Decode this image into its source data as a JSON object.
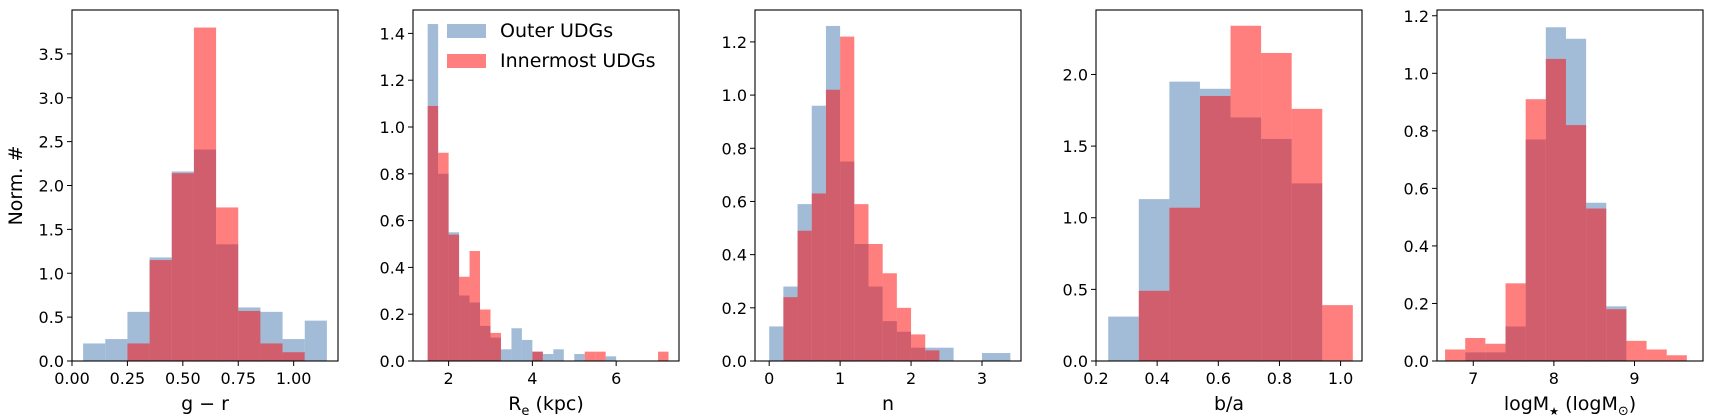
{
  "colors": {
    "outer": "#7aa0c8",
    "innermost": "#ff0000",
    "outer_alpha": 0.7,
    "innermost_alpha": 0.5
  },
  "legend": {
    "outer_label": "Outer UDGs",
    "innermost_label": "Innermost UDGs",
    "placement": "upper-right of panel 2"
  },
  "ylabel": "Norm. #",
  "chart_data": [
    {
      "type": "bar",
      "xlabel": "g − r",
      "xlim": [
        0.0,
        1.2
      ],
      "ylim": [
        0,
        4.0
      ],
      "xticks": [
        0.0,
        0.25,
        0.5,
        0.75,
        1.0
      ],
      "xtick_labels": [
        "0.00",
        "0.25",
        "0.50",
        "0.75",
        "1.00"
      ],
      "yticks": [
        0.0,
        0.5,
        1.0,
        1.5,
        2.0,
        2.5,
        3.0,
        3.5
      ],
      "ytick_labels": [
        "0.0",
        "0.5",
        "1.0",
        "1.5",
        "2.0",
        "2.5",
        "3.0",
        "3.5"
      ],
      "series": [
        {
          "name": "Outer UDGs",
          "bins": [
            [
              0.05,
              0.15,
              0.2
            ],
            [
              0.15,
              0.25,
              0.25
            ],
            [
              0.25,
              0.35,
              0.56
            ],
            [
              0.35,
              0.45,
              1.18
            ],
            [
              0.45,
              0.55,
              2.16
            ],
            [
              0.55,
              0.65,
              2.41
            ],
            [
              0.65,
              0.75,
              1.33
            ],
            [
              0.75,
              0.85,
              0.61
            ],
            [
              0.85,
              0.95,
              0.56
            ],
            [
              0.95,
              1.05,
              0.25
            ],
            [
              1.05,
              1.15,
              0.46
            ]
          ]
        },
        {
          "name": "Innermost UDGs",
          "bins": [
            [
              0.25,
              0.35,
              0.2
            ],
            [
              0.35,
              0.45,
              1.15
            ],
            [
              0.45,
              0.55,
              2.14
            ],
            [
              0.55,
              0.65,
              3.8
            ],
            [
              0.65,
              0.75,
              1.75
            ],
            [
              0.75,
              0.85,
              0.57
            ],
            [
              0.85,
              0.95,
              0.2
            ],
            [
              0.95,
              1.05,
              0.1
            ]
          ]
        }
      ]
    },
    {
      "type": "bar",
      "xlabel": "R",
      "xlabel_sub": "e",
      "xlabel_suffix": " (kpc)",
      "xlim": [
        1.15,
        7.5
      ],
      "ylim": [
        0,
        1.5
      ],
      "xticks": [
        2,
        4,
        6
      ],
      "xtick_labels": [
        "2",
        "4",
        "6"
      ],
      "yticks": [
        0.0,
        0.2,
        0.4,
        0.6,
        0.8,
        1.0,
        1.2,
        1.4
      ],
      "ytick_labels": [
        "0.0",
        "0.2",
        "0.4",
        "0.6",
        "0.8",
        "1.0",
        "1.2",
        "1.4"
      ],
      "series": [
        {
          "name": "Outer UDGs",
          "bins": [
            [
              1.5,
              1.75,
              1.44
            ],
            [
              1.75,
              2.0,
              0.8
            ],
            [
              2.0,
              2.25,
              0.55
            ],
            [
              2.25,
              2.5,
              0.28
            ],
            [
              2.5,
              2.75,
              0.25
            ],
            [
              2.75,
              3.0,
              0.15
            ],
            [
              3.0,
              3.25,
              0.1
            ],
            [
              3.25,
              3.5,
              0.05
            ],
            [
              3.5,
              3.75,
              0.14
            ],
            [
              3.75,
              4.0,
              0.09
            ],
            [
              4.0,
              4.25,
              0.04
            ],
            [
              4.25,
              4.5,
              0.03
            ],
            [
              4.5,
              4.75,
              0.05
            ],
            [
              5.0,
              5.25,
              0.03
            ],
            [
              5.75,
              6.0,
              0.02
            ]
          ]
        },
        {
          "name": "Innermost UDGs",
          "bins": [
            [
              1.5,
              1.75,
              1.09
            ],
            [
              1.75,
              2.0,
              0.89
            ],
            [
              2.0,
              2.25,
              0.54
            ],
            [
              2.25,
              2.5,
              0.36
            ],
            [
              2.5,
              2.75,
              0.47
            ],
            [
              2.75,
              3.0,
              0.22
            ],
            [
              3.0,
              3.25,
              0.12
            ],
            [
              4.0,
              4.25,
              0.04
            ],
            [
              5.25,
              5.5,
              0.04
            ],
            [
              5.5,
              5.75,
              0.04
            ],
            [
              7.0,
              7.25,
              0.04
            ]
          ]
        }
      ]
    },
    {
      "type": "bar",
      "xlabel": "n",
      "xlim": [
        -0.2,
        3.55
      ],
      "ylim": [
        0,
        1.32
      ],
      "xticks": [
        0,
        1,
        2,
        3
      ],
      "xtick_labels": [
        "0",
        "1",
        "2",
        "3"
      ],
      "yticks": [
        0.0,
        0.2,
        0.4,
        0.6,
        0.8,
        1.0,
        1.2
      ],
      "ytick_labels": [
        "0.0",
        "0.2",
        "0.4",
        "0.6",
        "0.8",
        "1.0",
        "1.2"
      ],
      "series": [
        {
          "name": "Outer UDGs",
          "bins": [
            [
              0.0,
              0.2,
              0.13
            ],
            [
              0.2,
              0.4,
              0.28
            ],
            [
              0.4,
              0.6,
              0.59
            ],
            [
              0.6,
              0.8,
              0.96
            ],
            [
              0.8,
              1.0,
              1.26
            ],
            [
              1.0,
              1.2,
              0.75
            ],
            [
              1.2,
              1.4,
              0.44
            ],
            [
              1.4,
              1.6,
              0.28
            ],
            [
              1.6,
              1.8,
              0.15
            ],
            [
              1.8,
              2.0,
              0.11
            ],
            [
              2.0,
              2.2,
              0.05
            ],
            [
              2.2,
              2.4,
              0.05
            ],
            [
              2.4,
              2.6,
              0.05
            ],
            [
              3.0,
              3.4,
              0.03
            ]
          ]
        },
        {
          "name": "Innermost UDGs",
          "bins": [
            [
              0.2,
              0.4,
              0.24
            ],
            [
              0.4,
              0.6,
              0.49
            ],
            [
              0.6,
              0.8,
              0.63
            ],
            [
              0.8,
              1.0,
              1.02
            ],
            [
              1.0,
              1.2,
              1.22
            ],
            [
              1.2,
              1.4,
              0.59
            ],
            [
              1.4,
              1.6,
              0.44
            ],
            [
              1.6,
              1.8,
              0.33
            ],
            [
              1.8,
              2.0,
              0.2
            ],
            [
              2.0,
              2.2,
              0.1
            ],
            [
              2.2,
              2.4,
              0.04
            ]
          ]
        }
      ]
    },
    {
      "type": "bar",
      "xlabel": "b/a",
      "xlim": [
        0.2,
        1.07
      ],
      "ylim": [
        0,
        2.45
      ],
      "xticks": [
        0.2,
        0.4,
        0.6,
        0.8,
        1.0
      ],
      "xtick_labels": [
        "0.2",
        "0.4",
        "0.6",
        "0.8",
        "1.0"
      ],
      "yticks": [
        0.0,
        0.5,
        1.0,
        1.5,
        2.0
      ],
      "ytick_labels": [
        "0.0",
        "0.5",
        "1.0",
        "1.5",
        "2.0"
      ],
      "series": [
        {
          "name": "Outer UDGs",
          "bins": [
            [
              0.24,
              0.34,
              0.31
            ],
            [
              0.34,
              0.44,
              1.13
            ],
            [
              0.44,
              0.54,
              1.95
            ],
            [
              0.54,
              0.64,
              1.9
            ],
            [
              0.64,
              0.74,
              1.7
            ],
            [
              0.74,
              0.84,
              1.55
            ],
            [
              0.84,
              0.94,
              1.24
            ]
          ]
        },
        {
          "name": "Innermost UDGs",
          "bins": [
            [
              0.34,
              0.44,
              0.49
            ],
            [
              0.44,
              0.54,
              1.07
            ],
            [
              0.54,
              0.64,
              1.85
            ],
            [
              0.64,
              0.74,
              2.34
            ],
            [
              0.74,
              0.84,
              2.15
            ],
            [
              0.84,
              0.94,
              1.76
            ],
            [
              0.94,
              1.04,
              0.39
            ]
          ]
        }
      ]
    },
    {
      "type": "bar",
      "xlabel": "logM",
      "xlabel_star": "★",
      "xlabel_mid": " (logM",
      "xlabel_sun": "⊙",
      "xlabel_end": ")",
      "xlim": [
        6.55,
        9.85
      ],
      "ylim": [
        0,
        1.22
      ],
      "xticks": [
        7,
        8,
        9
      ],
      "xtick_labels": [
        "7",
        "8",
        "9"
      ],
      "yticks": [
        0.0,
        0.2,
        0.4,
        0.6,
        0.8,
        1.0,
        1.2
      ],
      "ytick_labels": [
        "0.0",
        "0.2",
        "0.4",
        "0.6",
        "0.8",
        "1.0",
        "1.2"
      ],
      "series": [
        {
          "name": "Outer UDGs",
          "bins": [
            [
              6.9,
              7.15,
              0.03
            ],
            [
              7.15,
              7.4,
              0.03
            ],
            [
              7.4,
              7.65,
              0.12
            ],
            [
              7.65,
              7.9,
              0.77
            ],
            [
              7.9,
              8.15,
              1.16
            ],
            [
              8.15,
              8.4,
              1.12
            ],
            [
              8.4,
              8.65,
              0.55
            ],
            [
              8.65,
              8.9,
              0.19
            ]
          ]
        },
        {
          "name": "Innermost UDGs",
          "bins": [
            [
              6.65,
              6.9,
              0.04
            ],
            [
              6.9,
              7.15,
              0.08
            ],
            [
              7.15,
              7.4,
              0.06
            ],
            [
              7.4,
              7.65,
              0.27
            ],
            [
              7.65,
              7.9,
              0.91
            ],
            [
              7.9,
              8.15,
              1.05
            ],
            [
              8.15,
              8.4,
              0.82
            ],
            [
              8.4,
              8.65,
              0.53
            ],
            [
              8.65,
              8.9,
              0.18
            ],
            [
              8.9,
              9.15,
              0.07
            ],
            [
              9.15,
              9.4,
              0.04
            ],
            [
              9.4,
              9.65,
              0.02
            ]
          ]
        }
      ]
    }
  ]
}
